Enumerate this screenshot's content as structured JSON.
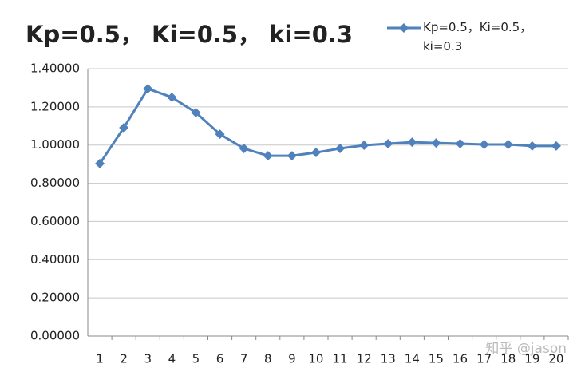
{
  "chart_data": {
    "type": "line",
    "title": "Kp=0.5， Ki=0.5， ki=0.3",
    "categories": [
      "1",
      "2",
      "3",
      "4",
      "5",
      "6",
      "7",
      "8",
      "9",
      "10",
      "11",
      "12",
      "13",
      "14",
      "15",
      "16",
      "17",
      "18",
      "19",
      "20"
    ],
    "series": [
      {
        "name": "Kp=0.5，Ki=0.5，ki=0.3",
        "color": "#4f81bd",
        "values": [
          0.903,
          1.091,
          1.295,
          1.25,
          1.17,
          1.057,
          0.982,
          0.944,
          0.944,
          0.961,
          0.982,
          0.999,
          1.007,
          1.015,
          1.011,
          1.007,
          1.003,
          1.003,
          0.995,
          0.995
        ]
      }
    ],
    "ylim": [
      0,
      1.4
    ],
    "yticks": [
      {
        "value": 0,
        "label": "0.00000"
      },
      {
        "value": 0.2,
        "label": "0.20000"
      },
      {
        "value": 0.4,
        "label": "0.40000"
      },
      {
        "value": 0.6,
        "label": "0.60000"
      },
      {
        "value": 0.8,
        "label": "0.80000"
      },
      {
        "value": 1,
        "label": "1.00000"
      },
      {
        "value": 1.2,
        "label": "1.20000"
      },
      {
        "value": 1.4,
        "label": "1.40000"
      }
    ],
    "grid": true,
    "legend": "top-right",
    "watermark": "知乎 @jason"
  }
}
